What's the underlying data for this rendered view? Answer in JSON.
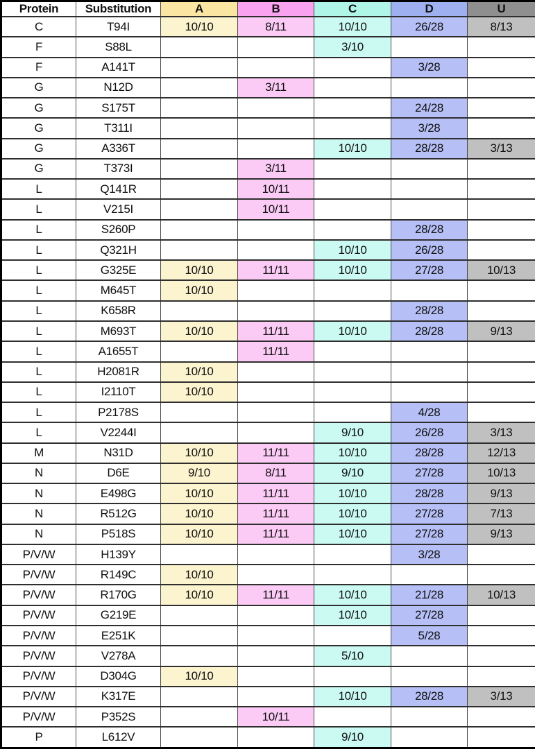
{
  "chart_data": {
    "type": "table",
    "columns": [
      {
        "key": "protein",
        "label": "Protein",
        "header_bg": "#ffffff",
        "cell_bg": "#ffffff"
      },
      {
        "key": "substitution",
        "label": "Substitution",
        "header_bg": "#ffffff",
        "cell_bg": "#ffffff"
      },
      {
        "key": "A",
        "label": "A",
        "header_bg": "#fae6a2",
        "cell_bg": "#fcf3cf"
      },
      {
        "key": "B",
        "label": "B",
        "header_bg": "#f9a2ef",
        "cell_bg": "#fbcbf5"
      },
      {
        "key": "C",
        "label": "C",
        "header_bg": "#b0f6e8",
        "cell_bg": "#cafaf1"
      },
      {
        "key": "D",
        "label": "D",
        "header_bg": "#9fb0f0",
        "cell_bg": "#b6c0f6"
      },
      {
        "key": "U",
        "label": "U",
        "header_bg": "#8f8f8f",
        "cell_bg": "#c0c0c0"
      }
    ],
    "rows": [
      {
        "protein": "C",
        "substitution": "T94I",
        "A": "10/10",
        "B": "8/11",
        "C": "10/10",
        "D": "26/28",
        "U": "8/13"
      },
      {
        "protein": "F",
        "substitution": "S88L",
        "A": "",
        "B": "",
        "C": "3/10",
        "D": "",
        "U": ""
      },
      {
        "protein": "F",
        "substitution": "A141T",
        "A": "",
        "B": "",
        "C": "",
        "D": "3/28",
        "U": ""
      },
      {
        "protein": "G",
        "substitution": "N12D",
        "A": "",
        "B": "3/11",
        "C": "",
        "D": "",
        "U": ""
      },
      {
        "protein": "G",
        "substitution": "S175T",
        "A": "",
        "B": "",
        "C": "",
        "D": "24/28",
        "U": ""
      },
      {
        "protein": "G",
        "substitution": "T311I",
        "A": "",
        "B": "",
        "C": "",
        "D": "3/28",
        "U": ""
      },
      {
        "protein": "G",
        "substitution": "A336T",
        "A": "",
        "B": "",
        "C": "10/10",
        "D": "28/28",
        "U": "3/13"
      },
      {
        "protein": "G",
        "substitution": "T373I",
        "A": "",
        "B": "3/11",
        "C": "",
        "D": "",
        "U": ""
      },
      {
        "protein": "L",
        "substitution": "Q141R",
        "A": "",
        "B": "10/11",
        "C": "",
        "D": "",
        "U": ""
      },
      {
        "protein": "L",
        "substitution": "V215I",
        "A": "",
        "B": "10/11",
        "C": "",
        "D": "",
        "U": ""
      },
      {
        "protein": "L",
        "substitution": "S260P",
        "A": "",
        "B": "",
        "C": "",
        "D": "28/28",
        "U": ""
      },
      {
        "protein": "L",
        "substitution": "Q321H",
        "A": "",
        "B": "",
        "C": "10/10",
        "D": "26/28",
        "U": ""
      },
      {
        "protein": "L",
        "substitution": "G325E",
        "A": "10/10",
        "B": "11/11",
        "C": "10/10",
        "D": "27/28",
        "U": "10/13"
      },
      {
        "protein": "L",
        "substitution": "M645T",
        "A": "10/10",
        "B": "",
        "C": "",
        "D": "",
        "U": ""
      },
      {
        "protein": "L",
        "substitution": "K658R",
        "A": "",
        "B": "",
        "C": "",
        "D": "28/28",
        "U": ""
      },
      {
        "protein": "L",
        "substitution": "M693T",
        "A": "10/10",
        "B": "11/11",
        "C": "10/10",
        "D": "28/28",
        "U": "9/13"
      },
      {
        "protein": "L",
        "substitution": "A1655T",
        "A": "",
        "B": "11/11",
        "C": "",
        "D": "",
        "U": ""
      },
      {
        "protein": "L",
        "substitution": "H2081R",
        "A": "10/10",
        "B": "",
        "C": "",
        "D": "",
        "U": ""
      },
      {
        "protein": "L",
        "substitution": "I2110T",
        "A": "10/10",
        "B": "",
        "C": "",
        "D": "",
        "U": ""
      },
      {
        "protein": "L",
        "substitution": "P2178S",
        "A": "",
        "B": "",
        "C": "",
        "D": "4/28",
        "U": ""
      },
      {
        "protein": "L",
        "substitution": "V2244I",
        "A": "",
        "B": "",
        "C": "9/10",
        "D": "26/28",
        "U": "3/13"
      },
      {
        "protein": "M",
        "substitution": "N31D",
        "A": "10/10",
        "B": "11/11",
        "C": "10/10",
        "D": "28/28",
        "U": "12/13"
      },
      {
        "protein": "N",
        "substitution": "D6E",
        "A": "9/10",
        "B": "8/11",
        "C": "9/10",
        "D": "27/28",
        "U": "10/13"
      },
      {
        "protein": "N",
        "substitution": "E498G",
        "A": "10/10",
        "B": "11/11",
        "C": "10/10",
        "D": "28/28",
        "U": "9/13"
      },
      {
        "protein": "N",
        "substitution": "R512G",
        "A": "10/10",
        "B": "11/11",
        "C": "10/10",
        "D": "27/28",
        "U": "7/13"
      },
      {
        "protein": "N",
        "substitution": "P518S",
        "A": "10/10",
        "B": "11/11",
        "C": "10/10",
        "D": "27/28",
        "U": "9/13"
      },
      {
        "protein": "P/V/W",
        "substitution": "H139Y",
        "A": "",
        "B": "",
        "C": "",
        "D": "3/28",
        "U": ""
      },
      {
        "protein": "P/V/W",
        "substitution": "R149C",
        "A": "10/10",
        "B": "",
        "C": "",
        "D": "",
        "U": ""
      },
      {
        "protein": "P/V/W",
        "substitution": "R170G",
        "A": "10/10",
        "B": "11/11",
        "C": "10/10",
        "D": "21/28",
        "U": "10/13"
      },
      {
        "protein": "P/V/W",
        "substitution": "G219E",
        "A": "",
        "B": "",
        "C": "10/10",
        "D": "27/28",
        "U": ""
      },
      {
        "protein": "P/V/W",
        "substitution": "E251K",
        "A": "",
        "B": "",
        "C": "",
        "D": "5/28",
        "U": ""
      },
      {
        "protein": "P/V/W",
        "substitution": "V278A",
        "A": "",
        "B": "",
        "C": "5/10",
        "D": "",
        "U": ""
      },
      {
        "protein": "P/V/W",
        "substitution": "D304G",
        "A": "10/10",
        "B": "",
        "C": "",
        "D": "",
        "U": ""
      },
      {
        "protein": "P/V/W",
        "substitution": "K317E",
        "A": "",
        "B": "",
        "C": "10/10",
        "D": "28/28",
        "U": "3/13"
      },
      {
        "protein": "P/V/W",
        "substitution": "P352S",
        "A": "",
        "B": "10/11",
        "C": "",
        "D": "",
        "U": ""
      },
      {
        "protein": "P",
        "substitution": "L612V",
        "A": "",
        "B": "",
        "C": "9/10",
        "D": "",
        "U": ""
      }
    ]
  }
}
